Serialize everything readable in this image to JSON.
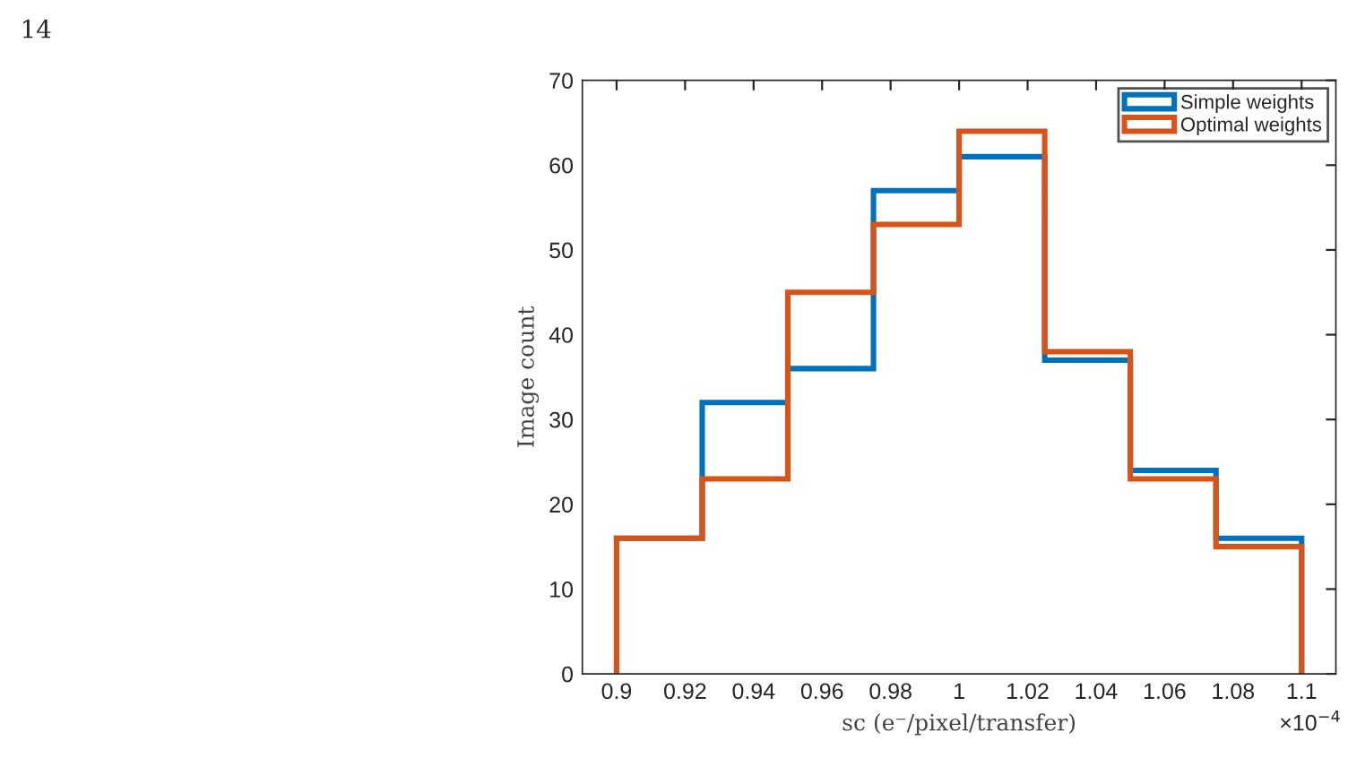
{
  "chart_data": {
    "type": "histogram",
    "xlabel": "sc (e⁻/pixel/transfer)",
    "ylabel": "Image count",
    "annotations": [
      "14",
      "×10$^{−4}$"
    ],
    "bins": [
      0.9,
      0.925,
      0.95,
      0.975,
      1.0,
      1.025,
      1.05,
      1.075,
      1.1
    ],
    "series": [
      {
        "name": "Simple weights",
        "color": "#0072bd",
        "values": [
          16,
          32,
          36,
          57,
          61,
          37,
          24,
          16
        ]
      },
      {
        "name": "Optimal weights",
        "color": "#d95319",
        "values": [
          16,
          23,
          45,
          53,
          64,
          38,
          23,
          15
        ]
      }
    ],
    "xlim": [
      0.89,
      1.11
    ],
    "xticks": [
      0.9,
      0.92,
      0.94,
      0.96,
      0.98,
      1,
      1.02,
      1.04,
      1.06,
      1.08,
      1.1
    ],
    "ylim": [
      0,
      70
    ],
    "yticks": [
      0,
      10,
      20,
      30,
      40,
      50,
      60,
      70
    ],
    "grid": false,
    "legend": "top right"
  }
}
